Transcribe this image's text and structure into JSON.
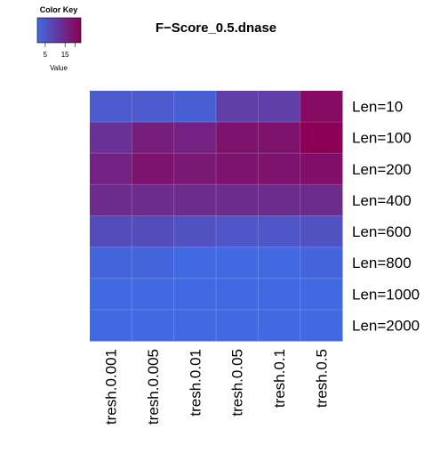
{
  "chart_data": {
    "type": "heatmap",
    "title": "F−Score_0.5.dnase",
    "rows": [
      "Len=10",
      "Len=100",
      "Len=200",
      "Len=400",
      "Len=600",
      "Len=800",
      "Len=1000",
      "Len=2000"
    ],
    "columns": [
      "tresh.0.001",
      "tresh.0.005",
      "tresh.0.01",
      "tresh.0.05",
      "tresh.0.1",
      "tresh.0.5"
    ],
    "values": [
      [
        4,
        4,
        3,
        10,
        10,
        21
      ],
      [
        13,
        17,
        16,
        19,
        19,
        23
      ],
      [
        16,
        19,
        18,
        19,
        19,
        20
      ],
      [
        14,
        14,
        14,
        14,
        14,
        14
      ],
      [
        7,
        7,
        6,
        5,
        5,
        6
      ],
      [
        2,
        2,
        1,
        1,
        1,
        2
      ],
      [
        1,
        1,
        1,
        1,
        1,
        1
      ],
      [
        1,
        1,
        1,
        1,
        1,
        1
      ]
    ],
    "color_low": "#4169e1",
    "color_high": "#8b0055",
    "value_range": [
      1,
      23
    ],
    "legend": {
      "title": "Color Key",
      "ticks": [
        "5",
        "15"
      ],
      "tick_values": [
        5,
        15
      ],
      "label": "Value",
      "placement": "top-left"
    }
  }
}
